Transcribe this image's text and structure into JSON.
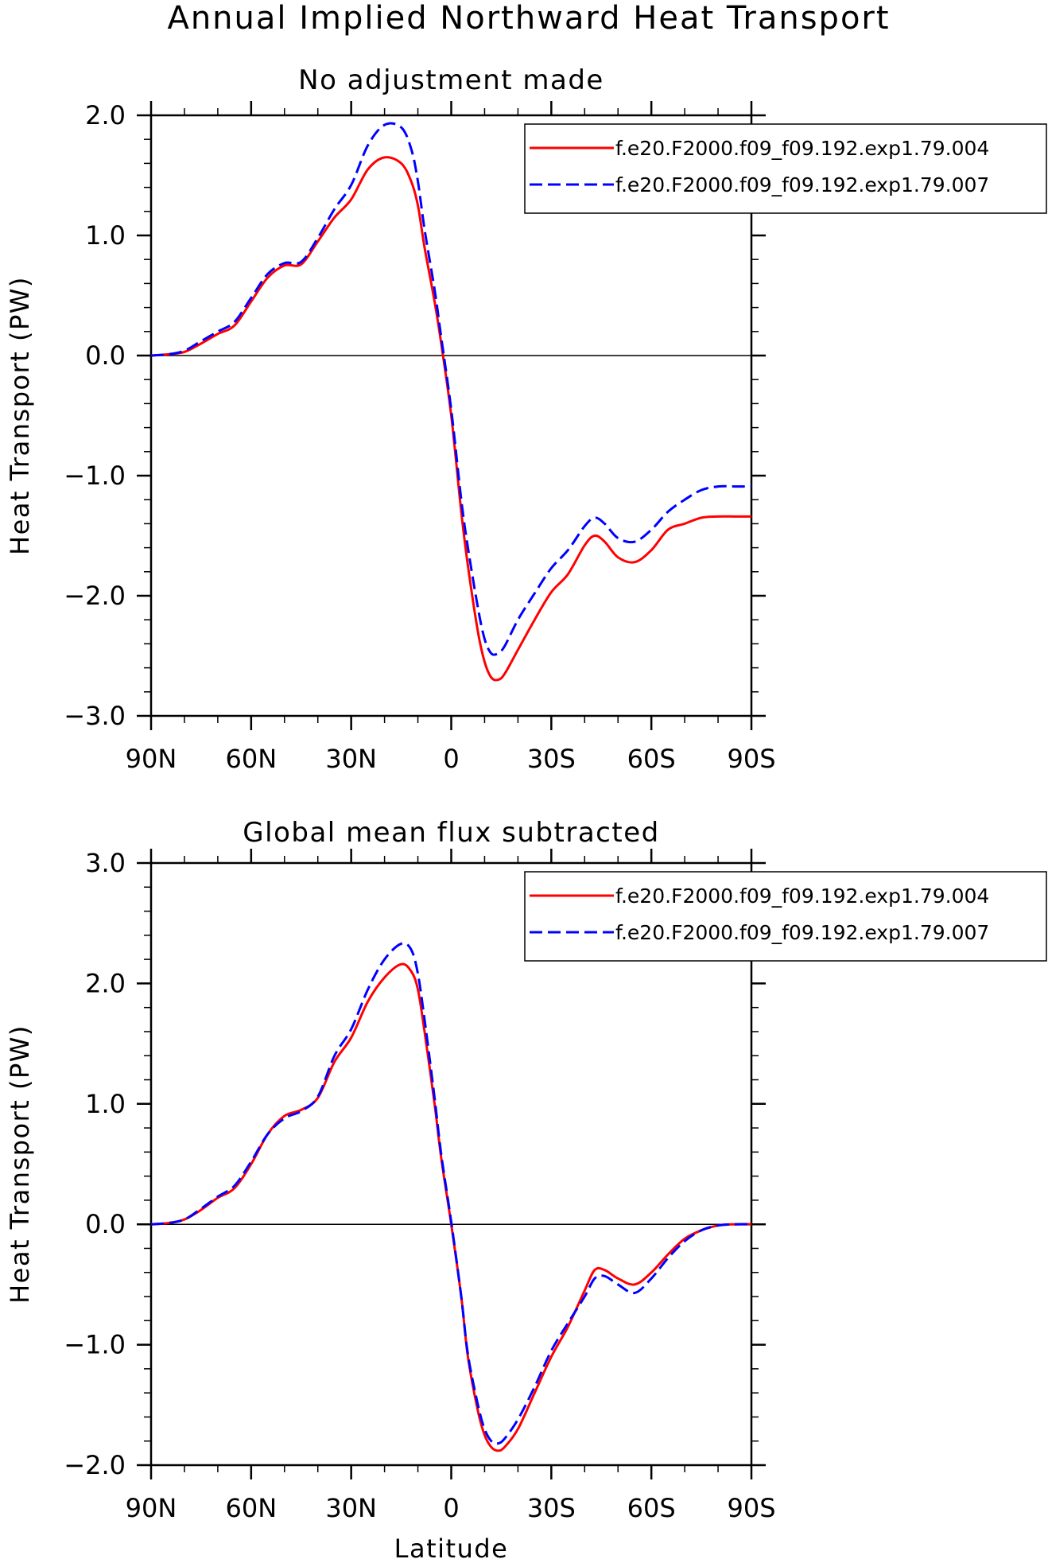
{
  "figure": {
    "title": "Annual Implied Northward Heat Transport"
  },
  "chart_data": [
    {
      "type": "line",
      "title": "No adjustment made",
      "xlabel": "",
      "ylabel": "Heat Transport (PW)",
      "xlim": [
        90,
        -90
      ],
      "ylim": [
        -3.0,
        2.0
      ],
      "xticks": [
        90,
        60,
        30,
        0,
        -30,
        -60,
        -90
      ],
      "xtick_labels": [
        "90N",
        "60N",
        "30N",
        "0",
        "30S",
        "60S",
        "90S"
      ],
      "yticks": [
        2.0,
        1.0,
        0.0,
        -1.0,
        -2.0,
        -3.0
      ],
      "ytick_labels": [
        "2.0",
        "1.0",
        "0.0",
        "−1.0",
        "−2.0",
        "−3.0"
      ],
      "zero_line": true,
      "legend_position": "top-right",
      "series": [
        {
          "name": "f.e20.F2000.f09_f09.192.exp1.79.004",
          "color": "#ff0000",
          "dash": "solid",
          "x": [
            90,
            85,
            80,
            75,
            70,
            65,
            60,
            55,
            50,
            45,
            40,
            35,
            30,
            25,
            20,
            15,
            12,
            10,
            8,
            5,
            3,
            0,
            -3,
            -5,
            -8,
            -10,
            -12,
            -14,
            -16,
            -20,
            -25,
            -30,
            -35,
            -40,
            -43,
            -46,
            -50,
            -55,
            -60,
            -65,
            -70,
            -75,
            -80,
            -85,
            -90
          ],
          "y": [
            0.0,
            0.01,
            0.03,
            0.1,
            0.18,
            0.25,
            0.45,
            0.65,
            0.75,
            0.76,
            0.95,
            1.15,
            1.3,
            1.55,
            1.65,
            1.6,
            1.45,
            1.25,
            0.9,
            0.45,
            0.1,
            -0.5,
            -1.3,
            -1.75,
            -2.3,
            -2.55,
            -2.68,
            -2.7,
            -2.65,
            -2.45,
            -2.2,
            -1.97,
            -1.82,
            -1.58,
            -1.5,
            -1.55,
            -1.68,
            -1.72,
            -1.62,
            -1.45,
            -1.4,
            -1.35,
            -1.34,
            -1.34,
            -1.34
          ]
        },
        {
          "name": "f.e20.F2000.f09_f09.192.exp1.79.007",
          "color": "#0000ff",
          "dash": "dashed",
          "x": [
            90,
            85,
            80,
            75,
            70,
            65,
            60,
            55,
            50,
            45,
            40,
            35,
            30,
            25,
            20,
            15,
            12,
            10,
            8,
            5,
            3,
            0,
            -3,
            -5,
            -8,
            -10,
            -12,
            -14,
            -16,
            -20,
            -25,
            -30,
            -35,
            -40,
            -43,
            -46,
            -50,
            -55,
            -60,
            -65,
            -70,
            -75,
            -80,
            -85,
            -90
          ],
          "y": [
            0.0,
            0.01,
            0.04,
            0.12,
            0.2,
            0.28,
            0.48,
            0.68,
            0.77,
            0.78,
            0.98,
            1.22,
            1.42,
            1.75,
            1.92,
            1.9,
            1.72,
            1.45,
            1.05,
            0.55,
            0.15,
            -0.45,
            -1.2,
            -1.6,
            -2.1,
            -2.36,
            -2.48,
            -2.48,
            -2.42,
            -2.2,
            -1.98,
            -1.77,
            -1.62,
            -1.42,
            -1.35,
            -1.4,
            -1.52,
            -1.55,
            -1.45,
            -1.3,
            -1.2,
            -1.12,
            -1.09,
            -1.09,
            -1.09
          ]
        }
      ]
    },
    {
      "type": "line",
      "title": "Global mean flux subtracted",
      "xlabel": "Latitude",
      "ylabel": "Heat Transport (PW)",
      "xlim": [
        90,
        -90
      ],
      "ylim": [
        -2.0,
        3.0
      ],
      "xticks": [
        90,
        60,
        30,
        0,
        -30,
        -60,
        -90
      ],
      "xtick_labels": [
        "90N",
        "60N",
        "30N",
        "0",
        "30S",
        "60S",
        "90S"
      ],
      "yticks": [
        3.0,
        2.0,
        1.0,
        0.0,
        -1.0,
        -2.0
      ],
      "ytick_labels": [
        "3.0",
        "2.0",
        "1.0",
        "0.0",
        "−1.0",
        "−2.0"
      ],
      "zero_line": true,
      "legend_position": "top-right",
      "series": [
        {
          "name": "f.e20.F2000.f09_f09.192.exp1.79.004",
          "color": "#ff0000",
          "dash": "solid",
          "x": [
            90,
            85,
            80,
            75,
            70,
            65,
            60,
            55,
            50,
            45,
            40,
            35,
            30,
            25,
            20,
            15,
            12,
            10,
            8,
            5,
            3,
            0,
            -3,
            -5,
            -8,
            -10,
            -12,
            -14,
            -16,
            -20,
            -25,
            -30,
            -35,
            -40,
            -43,
            -46,
            -50,
            -55,
            -60,
            -65,
            -70,
            -75,
            -80,
            -85,
            -90
          ],
          "y": [
            0.0,
            0.01,
            0.04,
            0.12,
            0.22,
            0.3,
            0.5,
            0.75,
            0.9,
            0.95,
            1.05,
            1.35,
            1.55,
            1.85,
            2.05,
            2.16,
            2.1,
            1.95,
            1.6,
            1.0,
            0.55,
            0.0,
            -0.6,
            -1.1,
            -1.55,
            -1.75,
            -1.85,
            -1.88,
            -1.85,
            -1.7,
            -1.4,
            -1.1,
            -0.85,
            -0.55,
            -0.38,
            -0.38,
            -0.45,
            -0.5,
            -0.4,
            -0.25,
            -0.12,
            -0.05,
            -0.01,
            0.0,
            0.0
          ]
        },
        {
          "name": "f.e20.F2000.f09_f09.192.exp1.79.007",
          "color": "#0000ff",
          "dash": "dashed",
          "x": [
            90,
            85,
            80,
            75,
            70,
            65,
            60,
            55,
            50,
            45,
            40,
            35,
            30,
            25,
            20,
            15,
            12,
            10,
            8,
            5,
            3,
            0,
            -3,
            -5,
            -8,
            -10,
            -12,
            -14,
            -16,
            -20,
            -25,
            -30,
            -35,
            -40,
            -43,
            -46,
            -50,
            -55,
            -60,
            -65,
            -70,
            -75,
            -80,
            -85,
            -90
          ],
          "y": [
            0.0,
            0.01,
            0.04,
            0.13,
            0.23,
            0.32,
            0.52,
            0.75,
            0.88,
            0.94,
            1.06,
            1.4,
            1.62,
            1.95,
            2.2,
            2.33,
            2.28,
            2.08,
            1.7,
            1.05,
            0.58,
            0.02,
            -0.6,
            -1.08,
            -1.5,
            -1.7,
            -1.8,
            -1.82,
            -1.78,
            -1.62,
            -1.35,
            -1.05,
            -0.82,
            -0.6,
            -0.45,
            -0.43,
            -0.5,
            -0.57,
            -0.45,
            -0.28,
            -0.14,
            -0.05,
            -0.01,
            0.0,
            0.0
          ]
        }
      ]
    }
  ]
}
